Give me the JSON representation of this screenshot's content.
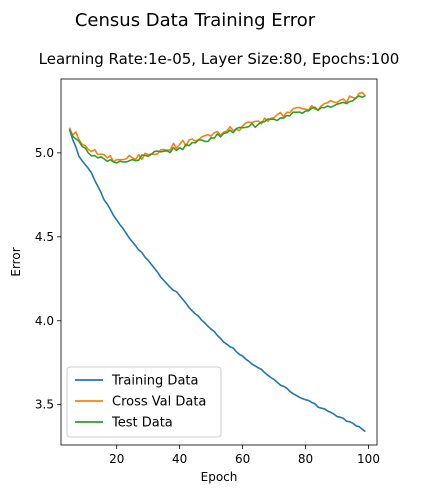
{
  "chart_data": {
    "type": "line",
    "title": "Census Data Training Error",
    "subtitle": "Learning Rate:1e-05, Layer Size:80, Epochs:100",
    "xlabel": "Epoch",
    "ylabel": "Error",
    "xlim": [
      2.3,
      102.7
    ],
    "ylim": [
      3.26,
      5.44
    ],
    "xticks": [
      20,
      40,
      60,
      80,
      100
    ],
    "yticks": [
      3.5,
      4.0,
      4.5,
      5.0
    ],
    "tick_labels_x": [
      "20",
      "40",
      "60",
      "80",
      "100"
    ],
    "tick_labels_y": [
      "3.5",
      "4.0",
      "4.5",
      "5.0"
    ],
    "grid": false,
    "legend_position": "lower-left",
    "x_start": 5,
    "x_end": 99,
    "series": [
      {
        "name": "Training Data",
        "color": "#1f77b4",
        "anchors": [
          [
            5,
            5.14
          ],
          [
            8,
            4.98
          ],
          [
            12,
            4.88
          ],
          [
            16,
            4.72
          ],
          [
            20,
            4.6
          ],
          [
            25,
            4.47
          ],
          [
            30,
            4.36
          ],
          [
            35,
            4.24
          ],
          [
            40,
            4.15
          ],
          [
            45,
            4.04
          ],
          [
            50,
            3.95
          ],
          [
            55,
            3.86
          ],
          [
            60,
            3.79
          ],
          [
            65,
            3.72
          ],
          [
            70,
            3.65
          ],
          [
            75,
            3.58
          ],
          [
            80,
            3.53
          ],
          [
            85,
            3.48
          ],
          [
            90,
            3.43
          ],
          [
            95,
            3.39
          ],
          [
            99,
            3.34
          ]
        ],
        "noise": 0.006
      },
      {
        "name": "Cross Val Data",
        "color": "#ff7f0e",
        "anchors": [
          [
            5,
            5.15
          ],
          [
            8,
            5.08
          ],
          [
            11,
            5.02
          ],
          [
            14,
            4.99
          ],
          [
            17,
            4.97
          ],
          [
            20,
            4.96
          ],
          [
            25,
            4.97
          ],
          [
            30,
            4.99
          ],
          [
            35,
            5.02
          ],
          [
            40,
            5.05
          ],
          [
            45,
            5.07
          ],
          [
            50,
            5.1
          ],
          [
            55,
            5.13
          ],
          [
            60,
            5.16
          ],
          [
            65,
            5.19
          ],
          [
            70,
            5.21
          ],
          [
            75,
            5.24
          ],
          [
            80,
            5.26
          ],
          [
            85,
            5.28
          ],
          [
            90,
            5.3
          ],
          [
            95,
            5.33
          ],
          [
            98,
            5.36
          ],
          [
            99,
            5.34
          ]
        ],
        "noise": 0.022
      },
      {
        "name": "Test Data",
        "color": "#2ca02c",
        "anchors": [
          [
            5,
            5.14
          ],
          [
            8,
            5.07
          ],
          [
            11,
            5.0
          ],
          [
            14,
            4.97
          ],
          [
            17,
            4.95
          ],
          [
            20,
            4.94
          ],
          [
            25,
            4.96
          ],
          [
            30,
            4.98
          ],
          [
            35,
            5.01
          ],
          [
            40,
            5.03
          ],
          [
            45,
            5.06
          ],
          [
            50,
            5.09
          ],
          [
            55,
            5.12
          ],
          [
            60,
            5.15
          ],
          [
            65,
            5.17
          ],
          [
            70,
            5.2
          ],
          [
            75,
            5.22
          ],
          [
            80,
            5.25
          ],
          [
            85,
            5.27
          ],
          [
            90,
            5.29
          ],
          [
            95,
            5.31
          ],
          [
            99,
            5.34
          ]
        ],
        "noise": 0.017
      }
    ]
  }
}
